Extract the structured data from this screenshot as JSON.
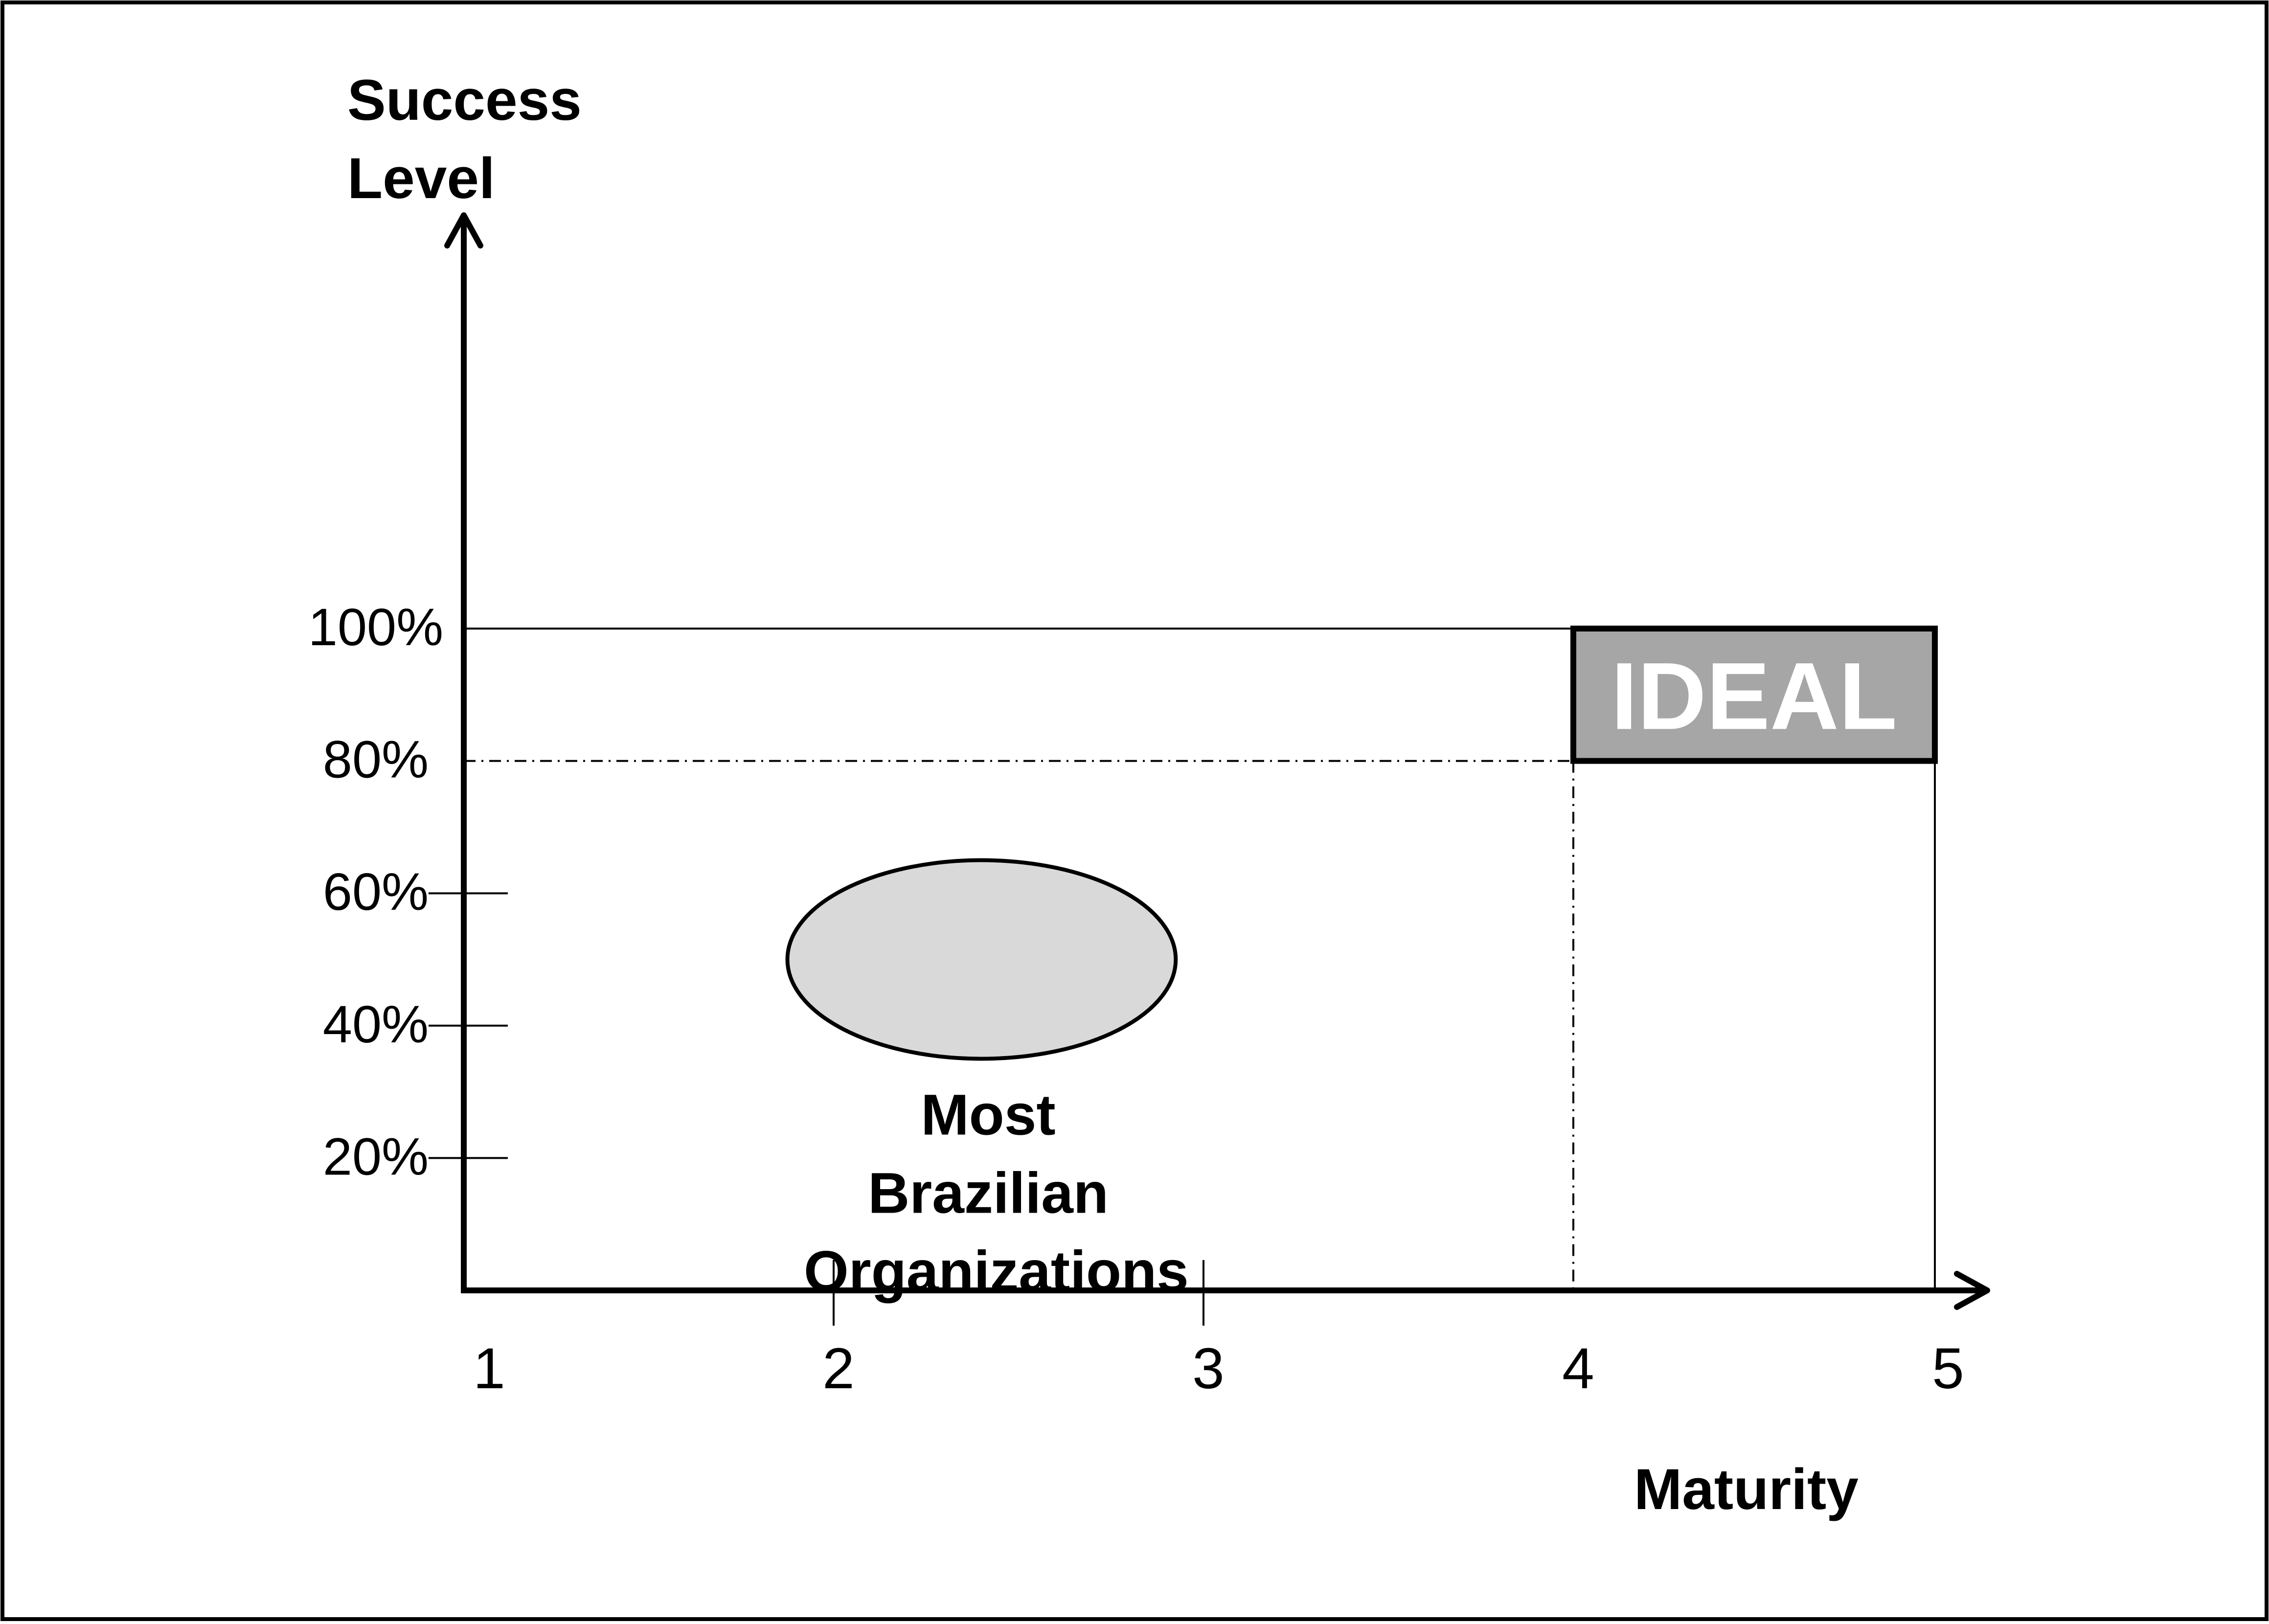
{
  "chart_data": {
    "type": "scatter",
    "title": "",
    "ylabel_lines": [
      "Success",
      "Level"
    ],
    "xlabel": "Maturity",
    "x_ticks": [
      1,
      2,
      3,
      4,
      5
    ],
    "y_ticks": [
      {
        "value": 100,
        "label": "100%"
      },
      {
        "value": 80,
        "label": "80%"
      },
      {
        "value": 60,
        "label": "60%"
      },
      {
        "value": 40,
        "label": "40%"
      },
      {
        "value": 20,
        "label": "20%"
      }
    ],
    "xlim": [
      1,
      5
    ],
    "ylim": [
      0,
      100
    ],
    "ideal_region": {
      "label": "IDEAL",
      "x_range": [
        4,
        5
      ],
      "y_range": [
        80,
        100
      ]
    },
    "cluster": {
      "label_lines": [
        "Most",
        "Brazilian",
        "Organizations"
      ],
      "center": {
        "x": 2.4,
        "y": 50
      },
      "x_range": [
        1.9,
        2.95
      ],
      "y_range": [
        35,
        65
      ]
    },
    "grid": false,
    "colors": {
      "ideal_fill": "#a6a6a6",
      "ideal_text": "#ffffff",
      "cluster_fill": "#d9d9d9",
      "axis": "#000000"
    }
  }
}
